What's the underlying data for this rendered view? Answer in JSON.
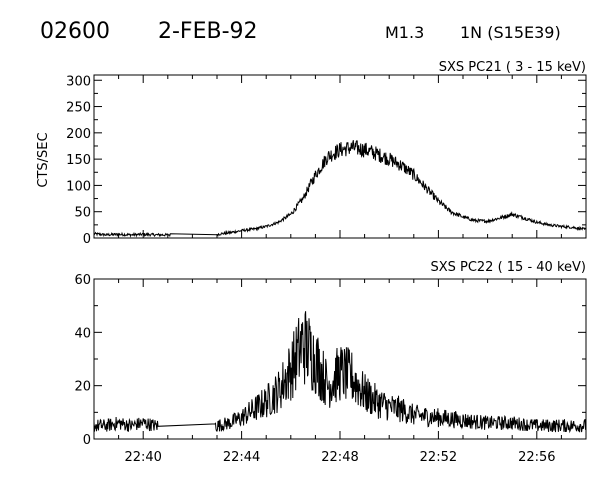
{
  "header": {
    "event_id": "02600",
    "date": "2-FEB-92",
    "goes_class": "M1.3",
    "location": "1N (S15E39)"
  },
  "chart_data": [
    {
      "type": "line",
      "title": "SXS PC21  (  3 - 15 keV)",
      "ylabel": "CTS/SEC",
      "xlabel": "",
      "x_unit": "UT (hh:mm)",
      "xlim": [
        "22:38",
        "22:58"
      ],
      "ylim": [
        0,
        310
      ],
      "yticks": [
        0,
        50,
        100,
        150,
        200,
        250,
        300
      ],
      "xticks": [
        "22:40",
        "22:44",
        "22:48",
        "22:52",
        "22:56"
      ],
      "data_gaps": [
        [
          "22:41.1",
          "22:43.0"
        ]
      ],
      "series": [
        {
          "x": [
            "22:38.0",
            "22:38.5",
            "22:39.0",
            "22:39.5",
            "22:40.0",
            "22:40.5",
            "22:41.0",
            "22:43.0",
            "22:43.5",
            "22:44.0",
            "22:44.5",
            "22:45.0",
            "22:45.5",
            "22:46.0",
            "22:46.5",
            "22:47.0",
            "22:47.5",
            "22:48.0",
            "22:48.5",
            "22:49.0",
            "22:49.5",
            "22:50.0",
            "22:50.5",
            "22:51.0",
            "22:51.5",
            "22:52.0",
            "22:52.5",
            "22:53.0",
            "22:53.5",
            "22:54.0",
            "22:54.5",
            "22:55.0",
            "22:55.5",
            "22:56.0",
            "22:56.5",
            "22:57.0",
            "22:57.5",
            "22:58.0"
          ],
          "values": [
            8,
            6,
            7,
            6,
            7,
            6,
            6,
            7,
            10,
            14,
            17,
            22,
            30,
            45,
            75,
            120,
            155,
            168,
            172,
            168,
            160,
            150,
            138,
            120,
            95,
            70,
            50,
            40,
            33,
            32,
            38,
            45,
            38,
            30,
            25,
            22,
            20,
            16
          ]
        }
      ]
    },
    {
      "type": "line",
      "title": "SXS PC22  ( 15 - 40 keV)",
      "ylabel": "",
      "xlabel": "",
      "x_unit": "UT (hh:mm)",
      "xlim": [
        "22:38",
        "22:58"
      ],
      "ylim": [
        0,
        60
      ],
      "yticks": [
        0,
        20,
        40,
        60
      ],
      "xticks": [
        "22:40",
        "22:44",
        "22:48",
        "22:52",
        "22:56"
      ],
      "data_gaps": [
        [
          "22:40.6",
          "22:42.9"
        ]
      ],
      "series": [
        {
          "x": [
            "22:38.0",
            "22:38.5",
            "22:39.0",
            "22:39.5",
            "22:40.0",
            "22:40.5",
            "22:43.0",
            "22:43.5",
            "22:44.0",
            "22:44.5",
            "22:45.0",
            "22:45.5",
            "22:46.0",
            "22:46.5",
            "22:47.0",
            "22:47.5",
            "22:48.0",
            "22:48.5",
            "22:49.0",
            "22:49.5",
            "22:50.0",
            "22:50.5",
            "22:51.0",
            "22:52.0",
            "22:53.0",
            "22:54.0",
            "22:55.0",
            "22:56.0",
            "22:57.0",
            "22:58.0"
          ],
          "values": [
            5,
            5,
            6,
            5,
            6,
            5,
            5,
            6,
            8,
            11,
            14,
            18,
            26,
            36,
            30,
            20,
            25,
            23,
            17,
            14,
            12,
            11,
            9,
            8,
            7,
            6,
            6,
            5,
            5,
            5
          ]
        }
      ]
    }
  ]
}
